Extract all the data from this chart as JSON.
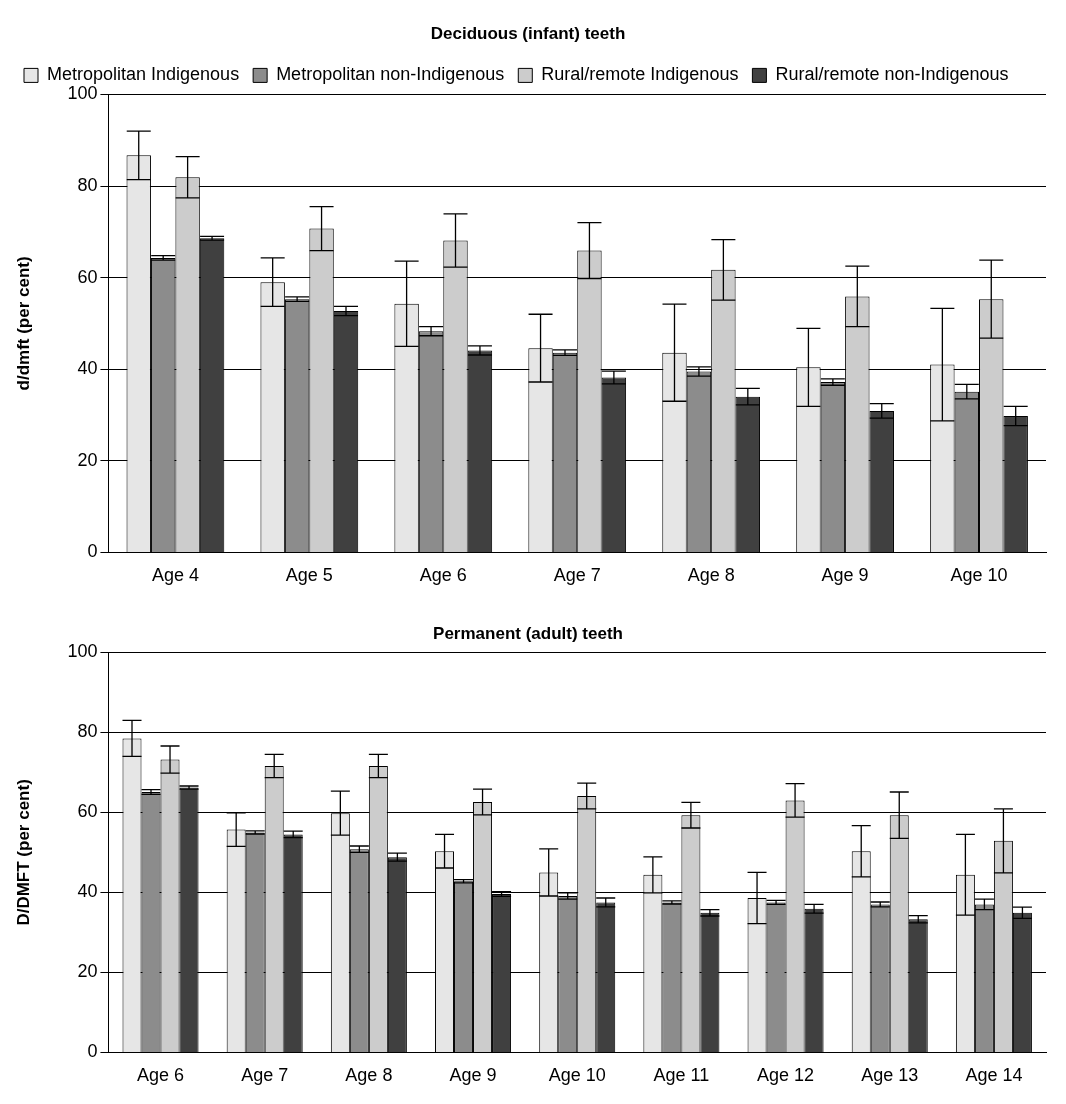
{
  "chart_data": [
    {
      "type": "bar",
      "title": "Deciduous (infant) teeth",
      "ylabel": "d/dmft (per cent)",
      "categories": [
        "Age 4",
        "Age 5",
        "Age 6",
        "Age 7",
        "Age 8",
        "Age 9",
        "Age 10"
      ],
      "series": [
        {
          "name": "Metropolitan Indigenous",
          "color": "#e6e6e6",
          "values": [
            86.7,
            59.0,
            54.3,
            44.6,
            43.6,
            40.4,
            41.0
          ],
          "errors": [
            5.3,
            5.3,
            9.3,
            7.4,
            10.6,
            8.5,
            12.3
          ]
        },
        {
          "name": "Metropolitan non-Indigenous",
          "color": "#8c8c8c",
          "values": [
            64.3,
            55.3,
            48.3,
            43.6,
            39.5,
            37.2,
            35.1
          ],
          "errors": [
            0.5,
            0.5,
            1.0,
            0.6,
            1.0,
            0.7,
            1.6
          ]
        },
        {
          "name": "Rural/remote Indigenous",
          "color": "#cccccc",
          "values": [
            81.9,
            70.7,
            68.1,
            65.9,
            61.7,
            55.9,
            55.3
          ],
          "errors": [
            4.5,
            4.8,
            5.8,
            6.1,
            6.6,
            6.6,
            8.5
          ]
        },
        {
          "name": "Rural/remote non-Indigenous",
          "color": "#404040",
          "values": [
            68.6,
            52.7,
            44.1,
            38.2,
            34.0,
            30.9,
            29.8
          ],
          "errors": [
            0.4,
            1.0,
            1.0,
            1.4,
            1.8,
            1.6,
            2.1
          ]
        }
      ],
      "ylim": [
        0,
        100
      ],
      "yticks": [
        0,
        20,
        40,
        60,
        80,
        100
      ],
      "grid": "y",
      "legend": "top"
    },
    {
      "type": "bar",
      "title": "Permanent (adult) teeth",
      "ylabel": "D/DMFT (per cent)",
      "categories": [
        "Age 6",
        "Age 7",
        "Age 8",
        "Age 9",
        "Age 10",
        "Age 11",
        "Age 12",
        "Age 13",
        "Age 14"
      ],
      "series": [
        {
          "color": "#e6e6e6",
          "values": [
            78.5,
            55.7,
            59.8,
            50.3,
            45.0,
            44.4,
            38.6,
            50.3,
            44.4
          ],
          "errors": [
            4.5,
            4.2,
            5.5,
            4.2,
            5.9,
            4.5,
            6.4,
            6.4,
            10.1
          ]
        },
        {
          "color": "#8c8c8c",
          "values": [
            65.1,
            55.0,
            50.8,
            42.8,
            39.1,
            37.5,
            37.5,
            37.0,
            37.0
          ],
          "errors": [
            0.6,
            0.4,
            0.8,
            0.4,
            0.8,
            0.4,
            0.5,
            0.6,
            1.3
          ]
        },
        {
          "color": "#cccccc",
          "values": [
            73.2,
            71.6,
            71.6,
            62.6,
            64.1,
            59.3,
            63.0,
            59.3,
            52.9
          ],
          "errors": [
            3.4,
            2.9,
            2.9,
            3.2,
            3.2,
            3.2,
            4.2,
            5.8,
            8.0
          ]
        },
        {
          "color": "#404040",
          "values": [
            66.2,
            54.5,
            48.8,
            39.6,
            37.5,
            34.9,
            35.9,
            33.3,
            34.9
          ],
          "errors": [
            0.4,
            0.8,
            1.0,
            0.6,
            1.1,
            0.8,
            1.1,
            0.9,
            1.4
          ]
        }
      ],
      "ylim": [
        0,
        100
      ],
      "yticks": [
        0,
        20,
        40,
        60,
        80,
        100
      ],
      "grid": "y"
    }
  ]
}
